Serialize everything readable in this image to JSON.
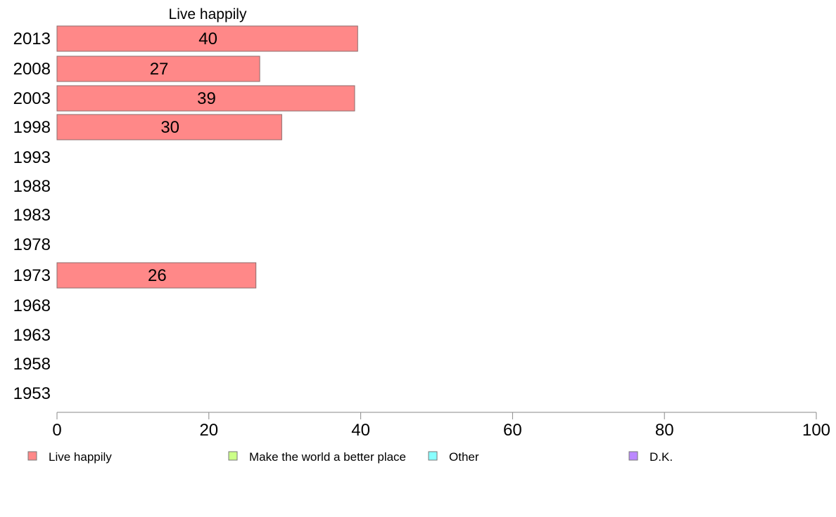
{
  "chart_data": {
    "type": "bar",
    "orientation": "horizontal",
    "title": "Live happily",
    "categories": [
      "2013",
      "2008",
      "2003",
      "1998",
      "1993",
      "1988",
      "1983",
      "1978",
      "1973",
      "1968",
      "1963",
      "1958",
      "1953"
    ],
    "series": [
      {
        "name": "Live happily",
        "color": "#ff8888",
        "values": [
          40,
          27,
          39,
          30,
          null,
          null,
          null,
          null,
          26,
          null,
          null,
          null,
          null
        ],
        "bar_values": [
          39.6,
          26.7,
          39.2,
          29.6,
          null,
          null,
          null,
          null,
          26.2,
          null,
          null,
          null,
          null
        ]
      }
    ],
    "xlim": [
      0,
      100
    ],
    "xticks": [
      0,
      20,
      40,
      60,
      80,
      100
    ],
    "grid": false,
    "legend": {
      "placement": "bottom",
      "entries": [
        {
          "label": "Live happily",
          "color": "#ff8888"
        },
        {
          "label": "Make the world a better place",
          "color": "#ccff88"
        },
        {
          "label": "Other",
          "color": "#88ffff"
        },
        {
          "label": "D.K.",
          "color": "#bb88ff"
        }
      ]
    }
  }
}
